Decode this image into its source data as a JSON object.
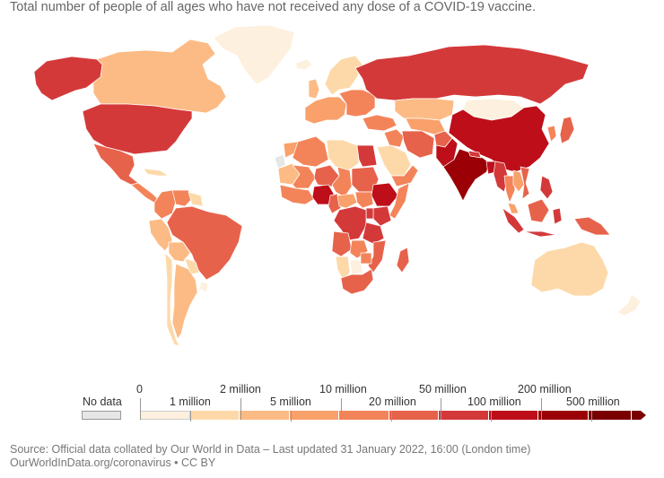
{
  "subtitle": "Total number of people of all ages who have not received any dose of a COVID-19 vaccine.",
  "legend": {
    "no_data_label": "No data",
    "no_data_color": "#e6e6e6",
    "upper_labels": [
      "0",
      "2 million",
      "10 million",
      "50 million",
      "200 million"
    ],
    "lower_labels": [
      "1 million",
      "5 million",
      "20 million",
      "100 million",
      "500 million"
    ],
    "colors": [
      "#fef0de",
      "#fdd9a9",
      "#fcbb85",
      "#f9a06b",
      "#f3845a",
      "#e7624b",
      "#d4393a",
      "#bd0e1a",
      "#9a0005",
      "#7a0000"
    ]
  },
  "source": {
    "line1": "Source: Official data collated by Our World in Data – Last updated 31 January 2022, 16:00 (London time)",
    "line2": "OurWorldInData.org/coronavirus • CC BY"
  },
  "regions": [
    {
      "name": "Alaska (United States)",
      "color": "#d4393a"
    },
    {
      "name": "Canada",
      "color": "#fcbb85"
    },
    {
      "name": "Greenland",
      "color": "#fef0de"
    },
    {
      "name": "United States",
      "color": "#d4393a"
    },
    {
      "name": "Mexico",
      "color": "#e7624b"
    },
    {
      "name": "Central America",
      "color": "#f3845a"
    },
    {
      "name": "Cuba",
      "color": "#fdd9a9"
    },
    {
      "name": "Colombia",
      "color": "#f3845a"
    },
    {
      "name": "Venezuela",
      "color": "#f3845a"
    },
    {
      "name": "Brazil",
      "color": "#e7624b"
    },
    {
      "name": "Peru",
      "color": "#fcbb85"
    },
    {
      "name": "Bolivia",
      "color": "#fcbb85"
    },
    {
      "name": "Paraguay",
      "color": "#fdd9a9"
    },
    {
      "name": "Argentina",
      "color": "#fcbb85"
    },
    {
      "name": "Chile",
      "color": "#fdd9a9"
    },
    {
      "name": "Uruguay",
      "color": "#fef0de"
    },
    {
      "name": "Guianas",
      "color": "#fdd9a9"
    },
    {
      "name": "Iceland",
      "color": "#fef0de"
    },
    {
      "name": "Scandinavia",
      "color": "#fdd9a9"
    },
    {
      "name": "United Kingdom",
      "color": "#fcbb85"
    },
    {
      "name": "Western Europe",
      "color": "#f9a06b"
    },
    {
      "name": "Eastern Europe",
      "color": "#f3845a"
    },
    {
      "name": "Russia",
      "color": "#d4393a"
    },
    {
      "name": "Turkey",
      "color": "#f3845a"
    },
    {
      "name": "Kazakhstan",
      "color": "#fcbb85"
    },
    {
      "name": "Central Asia",
      "color": "#f9a06b"
    },
    {
      "name": "Mongolia",
      "color": "#fef0de"
    },
    {
      "name": "China",
      "color": "#bd0e1a"
    },
    {
      "name": "Korea",
      "color": "#f3845a"
    },
    {
      "name": "Japan",
      "color": "#e7624b"
    },
    {
      "name": "Iran",
      "color": "#e7624b"
    },
    {
      "name": "Iraq and Syria",
      "color": "#f3845a"
    },
    {
      "name": "Saudi Arabia",
      "color": "#fdd9a9"
    },
    {
      "name": "Yemen and Oman",
      "color": "#f3845a"
    },
    {
      "name": "Afghanistan",
      "color": "#e7624b"
    },
    {
      "name": "Pakistan",
      "color": "#bd0e1a"
    },
    {
      "name": "India",
      "color": "#9a0005"
    },
    {
      "name": "Nepal",
      "color": "#d4393a"
    },
    {
      "name": "Bangladesh",
      "color": "#bd0e1a"
    },
    {
      "name": "Myanmar",
      "color": "#d4393a"
    },
    {
      "name": "Thailand",
      "color": "#f3845a"
    },
    {
      "name": "Vietnam",
      "color": "#e7624b"
    },
    {
      "name": "Laos and Cambodia",
      "color": "#f9a06b"
    },
    {
      "name": "Malaysia",
      "color": "#f9a06b"
    },
    {
      "name": "Philippines",
      "color": "#d4393a"
    },
    {
      "name": "Sumatra (Indonesia)",
      "color": "#d4393a"
    },
    {
      "name": "Java (Indonesia)",
      "color": "#d4393a"
    },
    {
      "name": "Borneo",
      "color": "#e7624b"
    },
    {
      "name": "Sulawesi (Indonesia)",
      "color": "#d4393a"
    },
    {
      "name": "Papua New Guinea",
      "color": "#e7624b"
    },
    {
      "name": "Australia",
      "color": "#fdd9a9"
    },
    {
      "name": "New Zealand",
      "color": "#fef0de"
    },
    {
      "name": "Western Sahara",
      "color": "#e6e6e6"
    },
    {
      "name": "Morocco",
      "color": "#f9a06b"
    },
    {
      "name": "Algeria",
      "color": "#f3845a"
    },
    {
      "name": "Libya",
      "color": "#fdd9a9"
    },
    {
      "name": "Egypt",
      "color": "#d4393a"
    },
    {
      "name": "Mauritania",
      "color": "#fcbb85"
    },
    {
      "name": "Mali",
      "color": "#f3845a"
    },
    {
      "name": "Niger",
      "color": "#e7624b"
    },
    {
      "name": "Chad",
      "color": "#f3845a"
    },
    {
      "name": "Sudan",
      "color": "#e7624b"
    },
    {
      "name": "West Africa coast",
      "color": "#f3845a"
    },
    {
      "name": "Nigeria",
      "color": "#bd0e1a"
    },
    {
      "name": "Cameroon",
      "color": "#e7624b"
    },
    {
      "name": "Central African Republic",
      "color": "#f9a06b"
    },
    {
      "name": "South Sudan",
      "color": "#f3845a"
    },
    {
      "name": "Ethiopia",
      "color": "#bd0e1a"
    },
    {
      "name": "Somalia",
      "color": "#f3845a"
    },
    {
      "name": "Kenya",
      "color": "#d4393a"
    },
    {
      "name": "DR Congo",
      "color": "#d4393a"
    },
    {
      "name": "Uganda",
      "color": "#d4393a"
    },
    {
      "name": "Tanzania",
      "color": "#d4393a"
    },
    {
      "name": "Angola",
      "color": "#e7624b"
    },
    {
      "name": "Zambia",
      "color": "#f3845a"
    },
    {
      "name": "Mozambique",
      "color": "#e7624b"
    },
    {
      "name": "Namibia",
      "color": "#fdd9a9"
    },
    {
      "name": "Botswana",
      "color": "#fef0de"
    },
    {
      "name": "Zimbabwe",
      "color": "#f3845a"
    },
    {
      "name": "South Africa",
      "color": "#e7624b"
    },
    {
      "name": "Madagascar",
      "color": "#e7624b"
    }
  ]
}
